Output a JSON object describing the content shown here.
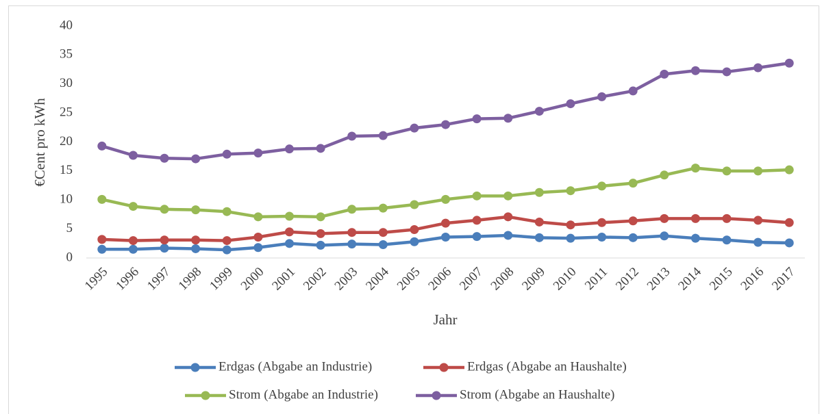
{
  "chart_data": {
    "type": "line",
    "categories": [
      "1995",
      "1996",
      "1997",
      "1998",
      "1999",
      "2000",
      "2001",
      "2002",
      "2003",
      "2004",
      "2005",
      "2006",
      "2007",
      "2008",
      "2009",
      "2010",
      "2011",
      "2012",
      "2013",
      "2014",
      "2015",
      "2016",
      "2017"
    ],
    "x_label": "Jahr",
    "y_label": "€Cent pro kWh",
    "ylim": [
      0,
      40
    ],
    "yticks": [
      0,
      5,
      10,
      15,
      20,
      25,
      30,
      35,
      40
    ],
    "grid": false,
    "series": [
      {
        "name": "Erdgas (Abgabe an Industrie)",
        "color": "#4a7ebb",
        "values": [
          1.5,
          1.5,
          1.7,
          1.6,
          1.4,
          1.8,
          2.5,
          2.2,
          2.4,
          2.3,
          2.8,
          3.6,
          3.7,
          3.9,
          3.5,
          3.4,
          3.6,
          3.5,
          3.8,
          3.4,
          3.1,
          2.7,
          2.6
        ]
      },
      {
        "name": "Erdgas (Abgabe an Haushalte)",
        "color": "#be4b48",
        "values": [
          3.2,
          3.0,
          3.1,
          3.1,
          3.0,
          3.6,
          4.5,
          4.2,
          4.4,
          4.4,
          4.9,
          6.0,
          6.5,
          7.1,
          6.2,
          5.7,
          6.1,
          6.4,
          6.8,
          6.8,
          6.8,
          6.5,
          6.1
        ]
      },
      {
        "name": "Strom (Abgabe an Industrie)",
        "color": "#98b954",
        "values": [
          10.1,
          8.9,
          8.4,
          8.3,
          8.0,
          7.1,
          7.2,
          7.1,
          8.4,
          8.6,
          9.2,
          10.1,
          10.7,
          10.7,
          11.3,
          11.6,
          12.4,
          12.9,
          14.3,
          15.5,
          15.0,
          15.0,
          15.2
        ]
      },
      {
        "name": "Strom (Abgabe an Haushalte)",
        "color": "#7d5fa0",
        "values": [
          19.3,
          17.7,
          17.2,
          17.1,
          17.9,
          18.1,
          18.8,
          18.9,
          21.0,
          21.1,
          22.4,
          23.0,
          24.0,
          24.1,
          25.3,
          26.6,
          27.8,
          28.8,
          31.7,
          32.3,
          32.1,
          32.8,
          33.6
        ]
      }
    ]
  }
}
